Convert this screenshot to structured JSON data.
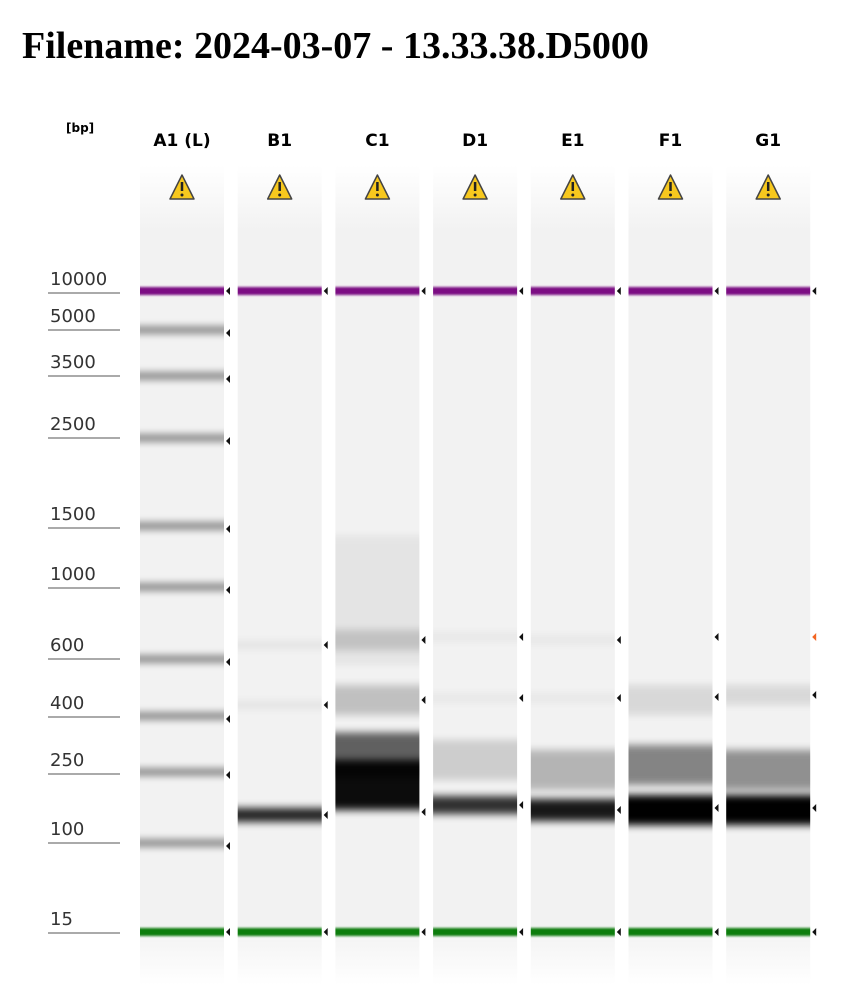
{
  "header": {
    "title": "Filename: 2024-03-07 - 13.33.38.D5000"
  },
  "gel": {
    "unit": "[bp]",
    "lanes": [
      "A1 (L)",
      "B1",
      "C1",
      "D1",
      "E1",
      "F1",
      "G1"
    ],
    "ladder": [
      "10000",
      "5000",
      "3500",
      "2500",
      "1500",
      "1000",
      "600",
      "400",
      "250",
      "100",
      "15"
    ]
  }
}
